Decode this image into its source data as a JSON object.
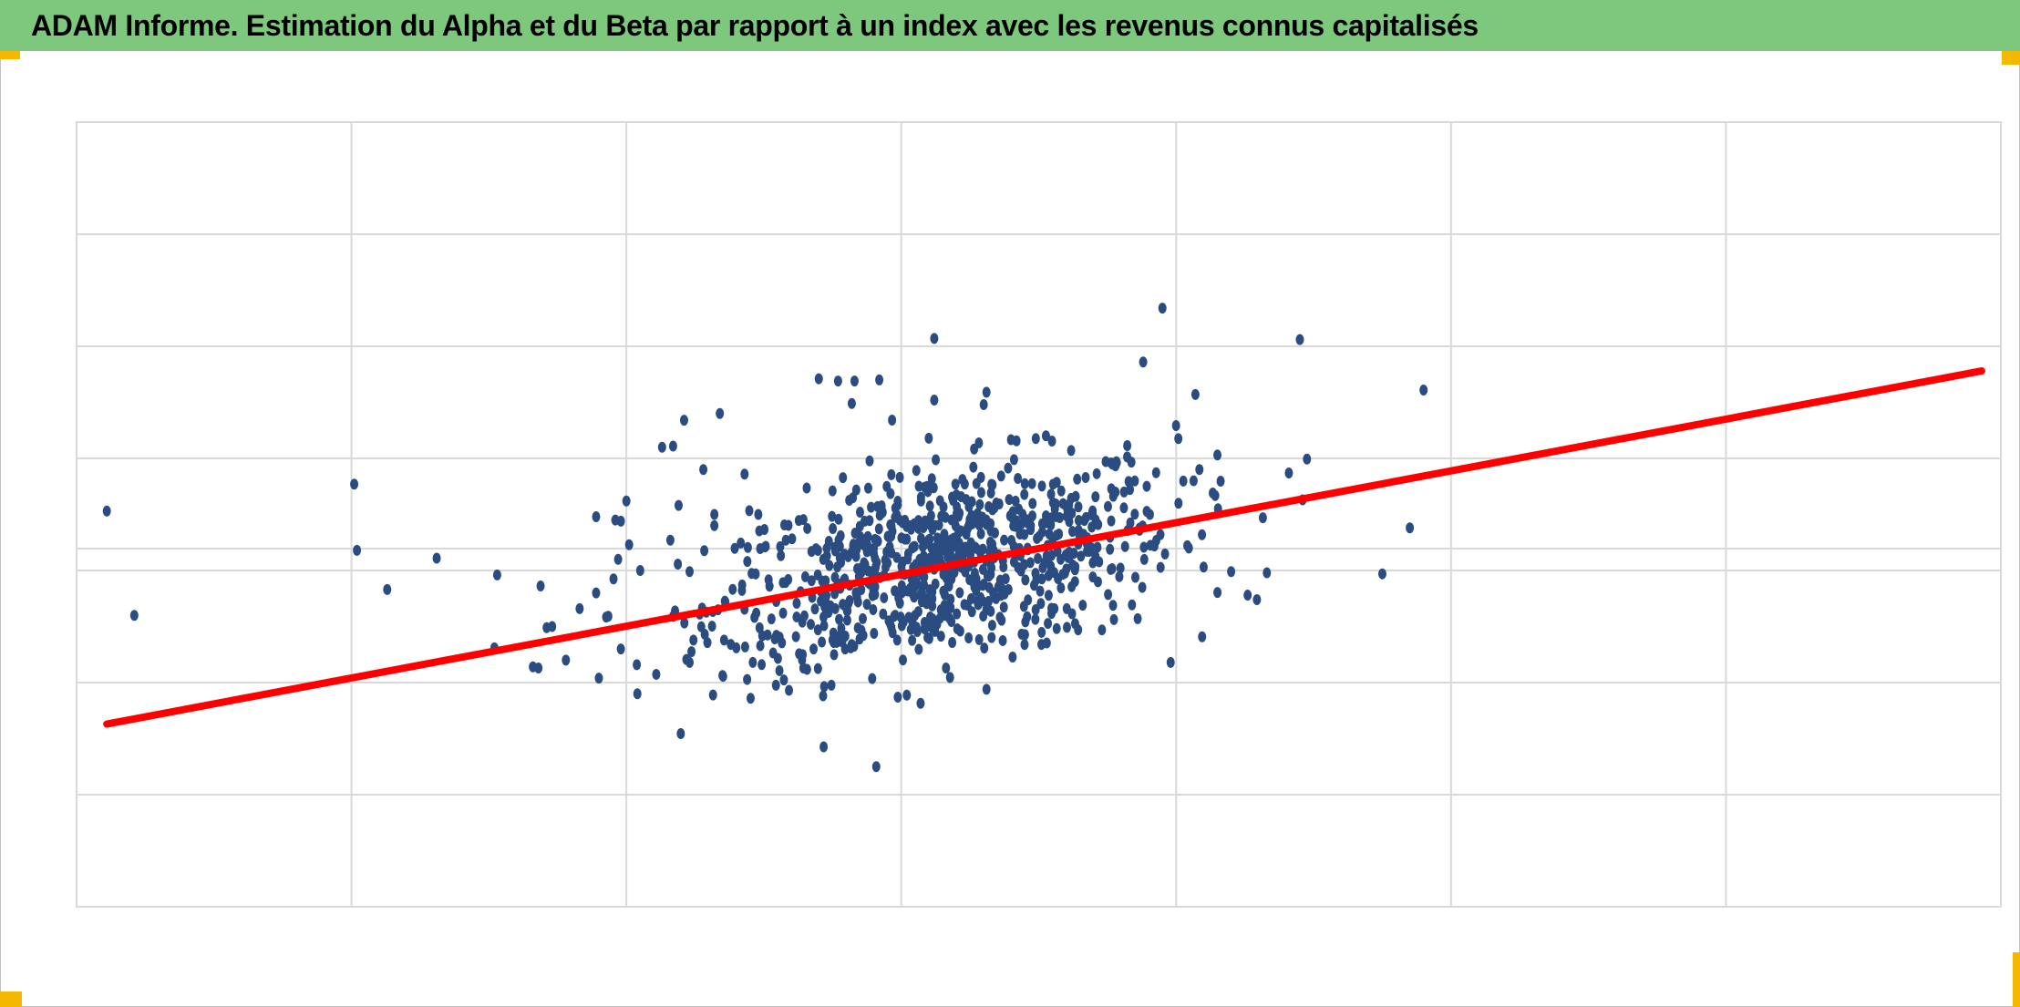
{
  "header": {
    "title": "ADAM Informe. Estimation du Alpha et du Beta par rapport à un index avec les revenus connus capitalisés",
    "background": "#7ec87e"
  },
  "colors": {
    "points": "#2b4c80",
    "trendline": "#ff0000",
    "grid": "#d9d9d9",
    "selection_handle": "#f5b800"
  },
  "chart_data": {
    "type": "scatter",
    "title": "",
    "xlabel": "",
    "ylabel": "",
    "xlim": [
      -3,
      4
    ],
    "ylim": [
      -3,
      4
    ],
    "grid": true,
    "legend": "none",
    "series": [
      {
        "kind": "points",
        "x": [
          -2.89,
          -2.79,
          -1.99,
          -1.87,
          -1.98,
          -1.69,
          -1.47,
          -1.48,
          -1.29,
          -1.27,
          -1.32,
          -1.22,
          -1.34,
          -1.1,
          -1.02,
          -0.96,
          -1.11,
          -1.17,
          -1.11,
          -0.99,
          -1.0,
          -1.03,
          -1.04,
          -1.02,
          -0.84,
          -0.83,
          -0.72,
          -0.77,
          -0.68,
          -0.83,
          -0.87,
          -0.79,
          -0.66,
          -0.62,
          -0.6,
          -0.77,
          -0.64,
          -0.54,
          -0.46,
          -0.36,
          -0.24,
          -0.18,
          -0.3,
          -0.08,
          0.31,
          0.12,
          -0.23,
          -0.17,
          0.95,
          0.88,
          1.45,
          1.9,
          1.07,
          1.15,
          1.41,
          1.46,
          1.1,
          0.05,
          0.16,
          -0.14,
          -0.25,
          -0.56,
          -0.68,
          0.31,
          0.66,
          0.73,
          0.86,
          0.98,
          1.33,
          0.51,
          0.39,
          1.2,
          1.26,
          1.85,
          1.75,
          -0.81,
          -0.52,
          -0.43,
          -0.57,
          -0.25,
          -0.15,
          0.12,
          0.3,
          0.1,
          0.29
        ],
        "y": [
          0.53,
          -0.4,
          0.77,
          -0.17,
          0.18,
          0.11,
          -0.04,
          -0.69,
          -0.51,
          -0.5,
          -0.87,
          -0.8,
          -0.86,
          -0.96,
          -0.7,
          -1.1,
          -0.2,
          -0.34,
          0.48,
          0.23,
          0.62,
          0.1,
          0.45,
          0.44,
          0.27,
          -0.41,
          0.9,
          -0.01,
          0.4,
          1.11,
          1.1,
          1.34,
          1.4,
          -0.66,
          -0.69,
          -0.82,
          -0.28,
          -0.82,
          -0.61,
          -0.46,
          -0.34,
          1.49,
          1.71,
          1.7,
          1.59,
          2.07,
          1.69,
          1.69,
          2.34,
          1.86,
          2.06,
          1.61,
          1.57,
          1.03,
          0.87,
          0.63,
          0.03,
          -0.4,
          -0.4,
          -0.43,
          -0.62,
          0.08,
          0.5,
          -1.06,
          -0.31,
          -0.53,
          -0.43,
          -0.82,
          -0.02,
          -0.66,
          -0.17,
          -0.01,
          -0.22,
          0.38,
          -0.03,
          0.58,
          0.5,
          -0.38,
          0.86,
          0.71,
          0.52,
          1.52,
          1.48,
          1.18,
          0.83
        ]
      },
      {
        "kind": "trendline",
        "x": [
          -2.89,
          3.93
        ],
        "y": [
          -1.37,
          1.78
        ]
      }
    ]
  }
}
